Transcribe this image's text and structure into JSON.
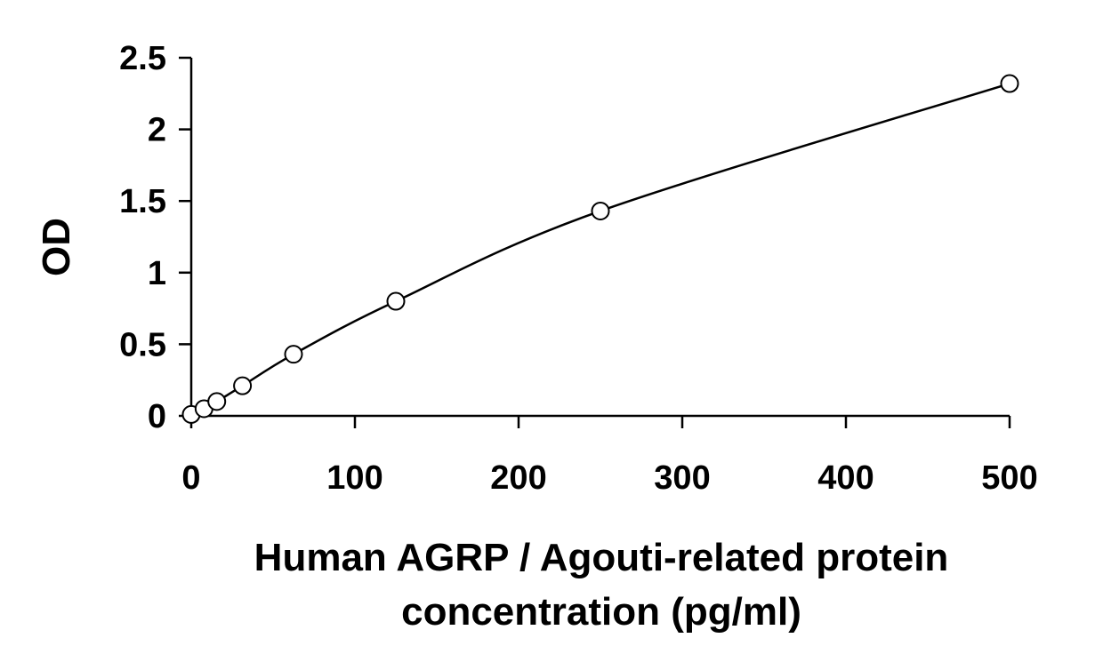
{
  "chart_data": {
    "type": "scatter",
    "title": "",
    "xlabel_lines": [
      "Human AGRP / Agouti-related protein",
      "concentration (pg/ml)"
    ],
    "ylabel": "OD",
    "xlim": [
      0,
      500
    ],
    "ylim": [
      0,
      2.5
    ],
    "xticks": [
      0,
      100,
      200,
      300,
      400,
      500
    ],
    "yticks": [
      0,
      0.5,
      1,
      1.5,
      2,
      2.5
    ],
    "ytick_labels": [
      "0",
      "0.5",
      "1",
      "1.5",
      "2",
      "2.5"
    ],
    "grid": false,
    "legend": "none",
    "series": [
      {
        "x": [
          0,
          7.8,
          15.6,
          31.3,
          62.5,
          125,
          250,
          500
        ],
        "y": [
          0.01,
          0.05,
          0.1,
          0.21,
          0.43,
          0.8,
          1.43,
          2.32
        ],
        "marker": "open-circle",
        "fit": "smooth-curve"
      }
    ]
  }
}
